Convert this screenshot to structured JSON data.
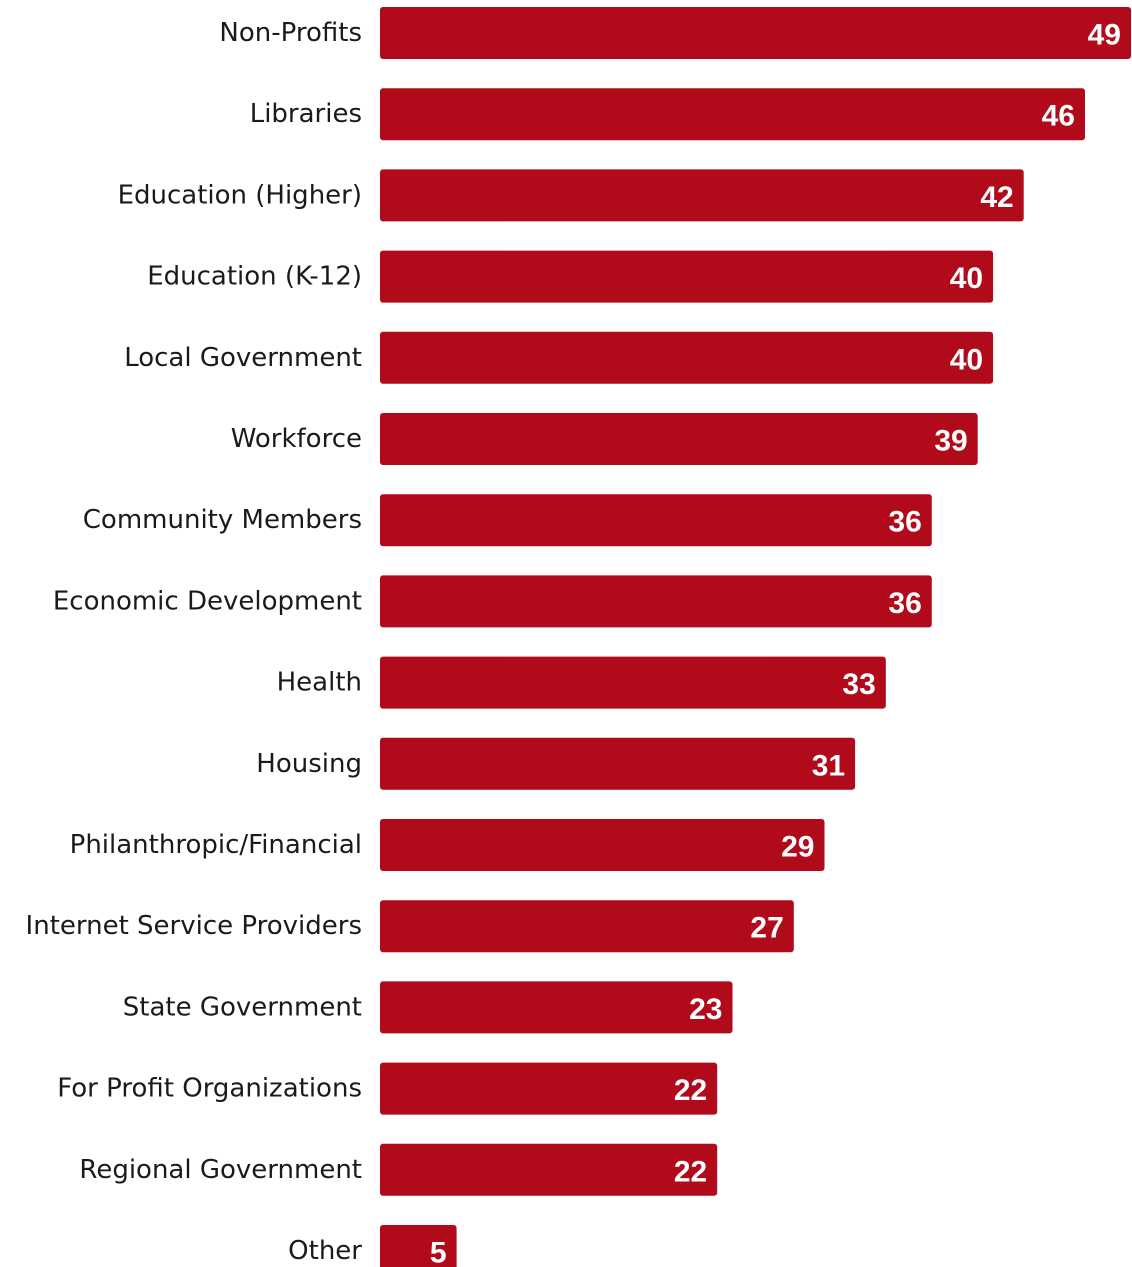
{
  "chart_data": {
    "type": "bar",
    "orientation": "horizontal",
    "categories": [
      "Non-Profits",
      "Libraries",
      "Education (Higher)",
      "Education (K-12)",
      "Local Government",
      "Workforce",
      "Community Members",
      "Economic Development",
      "Health",
      "Housing",
      "Philanthropic/Financial",
      "Internet Service Providers",
      "State Government",
      "For Profit Organizations",
      "Regional Government",
      "Other"
    ],
    "values": [
      49,
      46,
      42,
      40,
      40,
      39,
      36,
      36,
      33,
      31,
      29,
      27,
      23,
      22,
      22,
      5
    ],
    "title": "",
    "xlabel": "",
    "ylabel": "",
    "xlim": [
      0,
      49
    ],
    "bar_color": "#b00a1b",
    "label_color": "#ffffff",
    "data_labels": "inside-end",
    "grid": false,
    "legend": "none"
  }
}
